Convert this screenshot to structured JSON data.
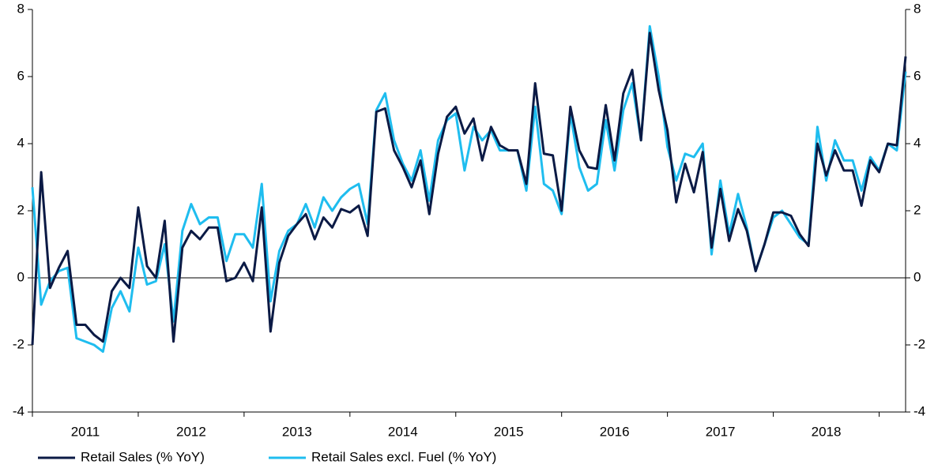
{
  "chart_data": {
    "type": "line",
    "x": [
      2011.0,
      2011.083,
      2011.167,
      2011.25,
      2011.333,
      2011.417,
      2011.5,
      2011.583,
      2011.667,
      2011.75,
      2011.833,
      2011.917,
      2012.0,
      2012.083,
      2012.167,
      2012.25,
      2012.333,
      2012.417,
      2012.5,
      2012.583,
      2012.667,
      2012.75,
      2012.833,
      2012.917,
      2013.0,
      2013.083,
      2013.167,
      2013.25,
      2013.333,
      2013.417,
      2013.5,
      2013.583,
      2013.667,
      2013.75,
      2013.833,
      2013.917,
      2014.0,
      2014.083,
      2014.167,
      2014.25,
      2014.333,
      2014.417,
      2014.5,
      2014.583,
      2014.667,
      2014.75,
      2014.833,
      2014.917,
      2015.0,
      2015.083,
      2015.167,
      2015.25,
      2015.333,
      2015.417,
      2015.5,
      2015.583,
      2015.667,
      2015.75,
      2015.833,
      2015.917,
      2016.0,
      2016.083,
      2016.167,
      2016.25,
      2016.333,
      2016.417,
      2016.5,
      2016.583,
      2016.667,
      2016.75,
      2016.833,
      2016.917,
      2017.0,
      2017.083,
      2017.167,
      2017.25,
      2017.333,
      2017.417,
      2017.5,
      2017.583,
      2017.667,
      2017.75,
      2017.833,
      2017.917,
      2018.0,
      2018.083,
      2018.167,
      2018.25,
      2018.333,
      2018.417,
      2018.5,
      2018.583,
      2018.667,
      2018.75,
      2018.833,
      2018.917,
      2019.0,
      2019.083,
      2019.167,
      2019.25
    ],
    "series": [
      {
        "name": "Retail Sales (% YoY)",
        "color": "#0b1a45",
        "values": [
          -2.0,
          3.15,
          -0.3,
          0.3,
          0.8,
          -1.4,
          -1.4,
          -1.7,
          -1.9,
          -0.4,
          0.0,
          -0.3,
          2.1,
          0.35,
          0.0,
          1.7,
          -1.9,
          0.9,
          1.4,
          1.15,
          1.5,
          1.5,
          -0.1,
          0.0,
          0.45,
          -0.1,
          2.1,
          -1.6,
          0.45,
          1.25,
          1.6,
          1.9,
          1.15,
          1.8,
          1.5,
          2.05,
          1.95,
          2.15,
          1.25,
          4.95,
          5.05,
          3.8,
          3.3,
          2.7,
          3.5,
          1.9,
          3.7,
          4.8,
          5.1,
          4.3,
          4.75,
          3.5,
          4.5,
          3.95,
          3.8,
          3.8,
          2.8,
          5.8,
          3.7,
          3.65,
          2.0,
          5.1,
          3.8,
          3.3,
          3.25,
          5.15,
          3.5,
          5.5,
          6.2,
          4.1,
          7.3,
          5.6,
          4.4,
          2.25,
          3.4,
          2.55,
          3.75,
          0.9,
          2.65,
          1.1,
          2.05,
          1.4,
          0.2,
          1.0,
          1.95,
          1.95,
          1.85,
          1.3,
          0.95,
          4.0,
          3.05,
          3.8,
          3.2,
          3.2,
          2.15,
          3.5,
          3.15,
          4.0,
          3.95,
          6.6
        ]
      },
      {
        "name": "Retail Sales excl. Fuel (% YoY)",
        "color": "#1fbdef",
        "values": [
          2.7,
          -0.8,
          -0.1,
          0.2,
          0.3,
          -1.8,
          -1.9,
          -2.0,
          -2.2,
          -0.9,
          -0.4,
          -1.0,
          0.9,
          -0.2,
          -0.1,
          1.0,
          -1.3,
          1.4,
          2.2,
          1.6,
          1.8,
          1.8,
          0.5,
          1.3,
          1.3,
          0.9,
          2.8,
          -0.7,
          0.8,
          1.4,
          1.6,
          2.2,
          1.5,
          2.4,
          2.0,
          2.4,
          2.65,
          2.8,
          1.6,
          5.0,
          5.5,
          4.1,
          3.4,
          2.9,
          3.8,
          2.3,
          4.1,
          4.7,
          4.9,
          3.2,
          4.5,
          4.1,
          4.4,
          3.8,
          3.8,
          3.8,
          2.6,
          5.1,
          2.8,
          2.6,
          1.9,
          4.9,
          3.3,
          2.6,
          2.8,
          4.7,
          3.2,
          5.0,
          5.8,
          4.1,
          7.5,
          6.0,
          3.9,
          2.9,
          3.7,
          3.6,
          4.0,
          0.7,
          2.9,
          1.3,
          2.5,
          1.5,
          0.2,
          1.0,
          1.8,
          2.0,
          1.6,
          1.2,
          1.0,
          4.5,
          2.9,
          4.1,
          3.5,
          3.5,
          2.6,
          3.6,
          3.2,
          4.0,
          3.8,
          6.15
        ]
      }
    ],
    "xlim": [
      2011.0,
      2019.25
    ],
    "xticks": [
      2011,
      2012,
      2013,
      2014,
      2015,
      2016,
      2017,
      2018,
      2019
    ],
    "xtick_labels": [
      {
        "value": 2011.5,
        "label": "2011"
      },
      {
        "value": 2012.5,
        "label": "2012"
      },
      {
        "value": 2013.5,
        "label": "2013"
      },
      {
        "value": 2014.5,
        "label": "2014"
      },
      {
        "value": 2015.5,
        "label": "2015"
      },
      {
        "value": 2016.5,
        "label": "2016"
      },
      {
        "value": 2017.5,
        "label": "2017"
      },
      {
        "value": 2018.5,
        "label": "2018"
      }
    ],
    "ylim": [
      -4,
      8
    ],
    "yticks": [
      -4,
      -2,
      0,
      2,
      4,
      6,
      8
    ],
    "y2lim": [
      -4,
      8
    ],
    "y2ticks": [
      -4,
      -2,
      0,
      2,
      4,
      6,
      8
    ],
    "grid": false,
    "legend": "bottom"
  }
}
